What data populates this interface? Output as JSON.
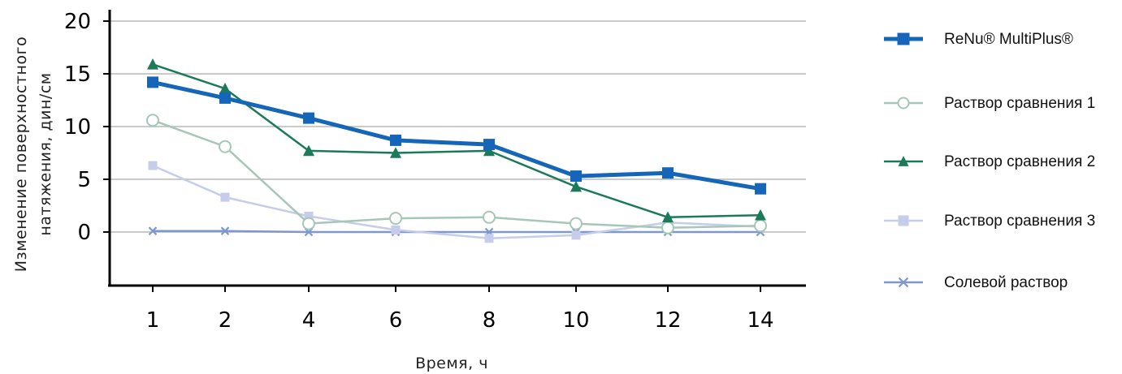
{
  "chart_data": {
    "type": "line",
    "xlabel": "Время, ч",
    "ylabel_lines": [
      "Изменение поверхностного",
      "натяжения, дин/см"
    ],
    "categories": [
      "1",
      "2",
      "4",
      "6",
      "8",
      "10",
      "12",
      "14"
    ],
    "y_ticks": [
      "20",
      "15",
      "10",
      "5",
      "0"
    ],
    "ylim": [
      -5,
      20
    ],
    "grid": true,
    "legend_position": "right",
    "series": [
      {
        "name": "ReNu® MultiPlus®",
        "color": "#1565b8",
        "marker": "square",
        "values": [
          14.2,
          12.7,
          10.8,
          8.7,
          8.3,
          5.3,
          5.6,
          4.1
        ]
      },
      {
        "name": "Раствор сравнения 1",
        "color": "#a6c7b8",
        "marker": "circle",
        "values": [
          10.6,
          8.1,
          0.8,
          1.3,
          1.4,
          0.8,
          0.4,
          0.6
        ]
      },
      {
        "name": "Раствор сравнения 2",
        "color": "#1a7a5a",
        "marker": "triangle",
        "values": [
          15.9,
          13.6,
          7.7,
          7.5,
          7.7,
          4.3,
          1.4,
          1.6
        ]
      },
      {
        "name": "Раствор сравнения 3",
        "color": "#c5cdeb",
        "marker": "square",
        "values": [
          6.3,
          3.3,
          1.5,
          0.2,
          -0.6,
          -0.3,
          0.9,
          0.5
        ]
      },
      {
        "name": "Солевой раствор",
        "color": "#7f97cf",
        "marker": "x",
        "values": [
          0.1,
          0.1,
          0.0,
          0.0,
          0.0,
          0.0,
          0.0,
          0.0
        ]
      }
    ]
  }
}
